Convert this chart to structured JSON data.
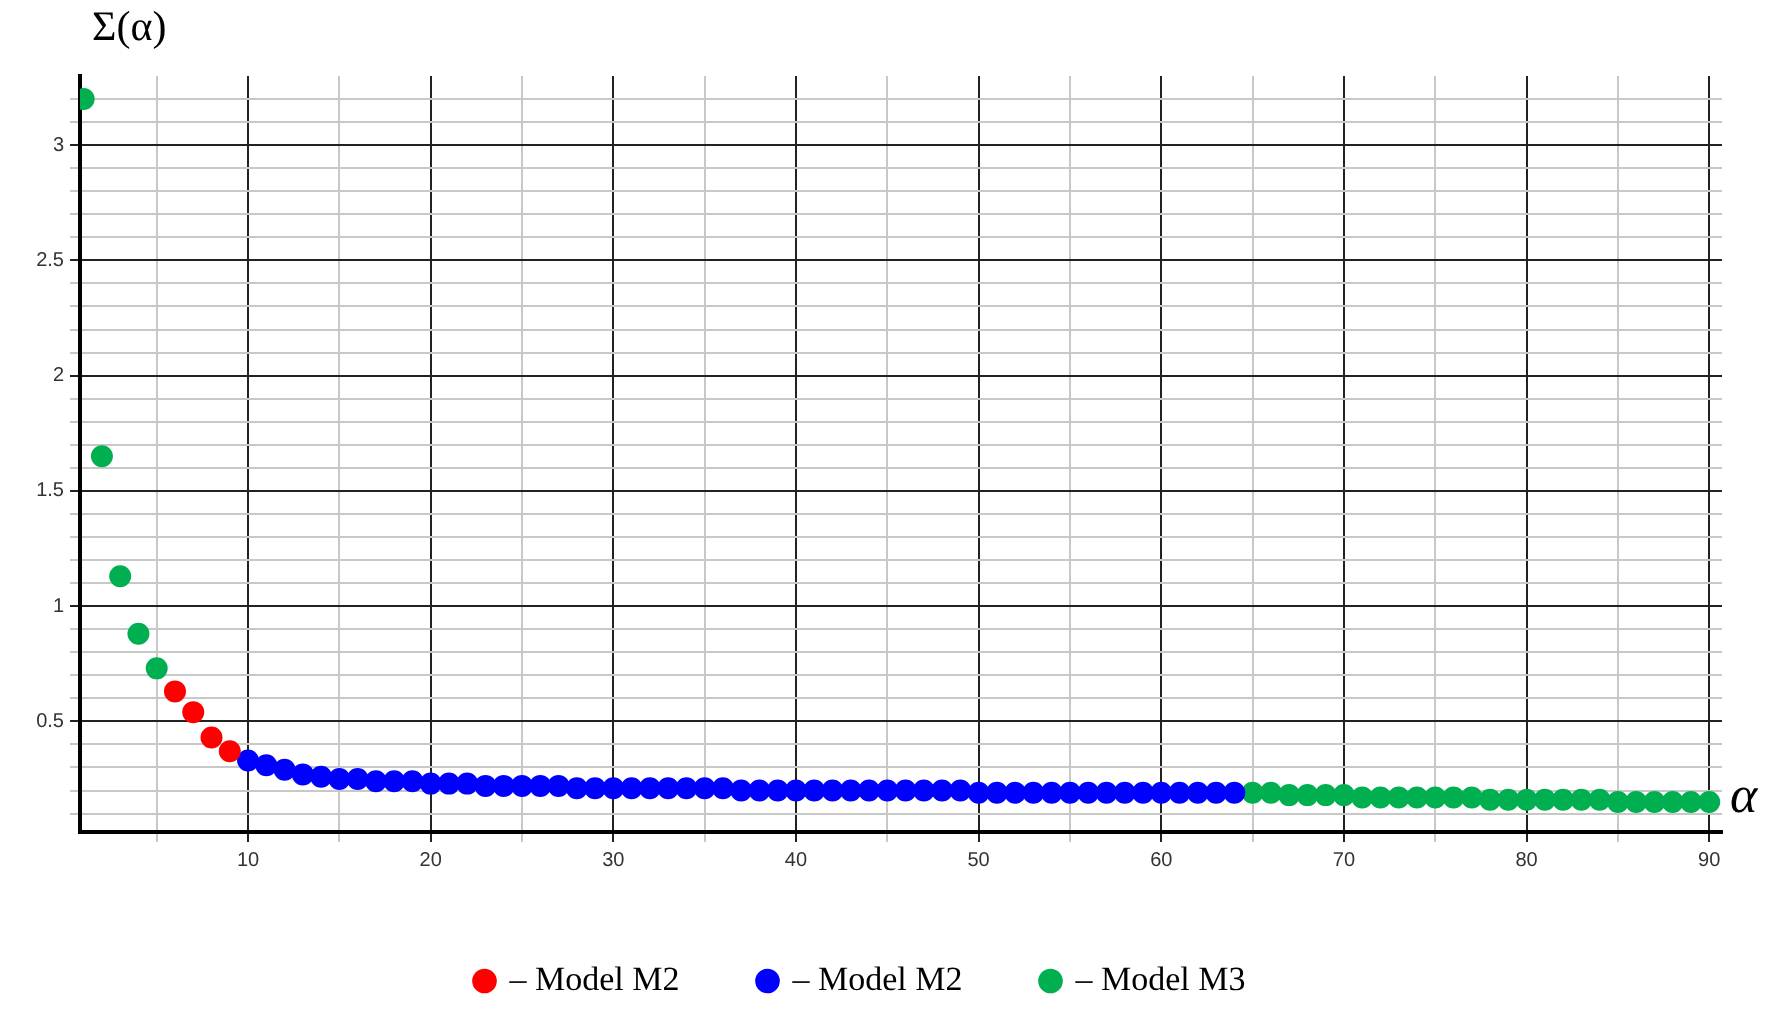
{
  "chart_data": {
    "type": "scatter",
    "xlabel": "α",
    "ylabel": "Σ(α)",
    "xlim": [
      0.8,
      90.7
    ],
    "ylim": [
      0.02,
      3.3
    ],
    "xticks": [
      {
        "value": 5,
        "label": null
      },
      10,
      {
        "value": 15,
        "label": null
      },
      20,
      {
        "value": 25,
        "label": null
      },
      30,
      {
        "value": 35,
        "label": null
      },
      40,
      {
        "value": 45,
        "label": null
      },
      50,
      {
        "value": 55,
        "label": null
      },
      60,
      {
        "value": 65,
        "label": null
      },
      70,
      {
        "value": 75,
        "label": null
      },
      80,
      {
        "value": 85,
        "label": null
      },
      90
    ],
    "yticks": [
      {
        "value": 0.1,
        "label": null
      },
      {
        "value": 0.2,
        "label": null
      },
      {
        "value": 0.3,
        "label": null
      },
      {
        "value": 0.4,
        "label": null
      },
      0.5,
      {
        "value": 0.6,
        "label": null
      },
      {
        "value": 0.7,
        "label": null
      },
      {
        "value": 0.8,
        "label": null
      },
      {
        "value": 0.9,
        "label": null
      },
      1,
      {
        "value": 1.1,
        "label": null
      },
      {
        "value": 1.2,
        "label": null
      },
      {
        "value": 1.3,
        "label": null
      },
      {
        "value": 1.4,
        "label": null
      },
      1.5,
      {
        "value": 1.6,
        "label": null
      },
      {
        "value": 1.7,
        "label": null
      },
      {
        "value": 1.8,
        "label": null
      },
      {
        "value": 1.9,
        "label": null
      },
      2,
      {
        "value": 2.1,
        "label": null
      },
      {
        "value": 2.2,
        "label": null
      },
      {
        "value": 2.3,
        "label": null
      },
      {
        "value": 2.4,
        "label": null
      },
      2.5,
      {
        "value": 2.6,
        "label": null
      },
      {
        "value": 2.7,
        "label": null
      },
      {
        "value": 2.8,
        "label": null
      },
      {
        "value": 2.9,
        "label": null
      },
      3,
      {
        "value": 3.1,
        "label": null
      },
      {
        "value": 3.2,
        "label": null
      }
    ],
    "grid": true,
    "legend": "bottom",
    "marker": "circle",
    "series": [
      {
        "name": "– Model M2",
        "color": "#ff0000",
        "x": [
          6,
          7,
          8,
          9
        ],
        "values": [
          0.63,
          0.54,
          0.43,
          0.37
        ]
      },
      {
        "name": "– Model M2",
        "color": "#0000ff",
        "x": [
          10,
          11,
          12,
          13,
          14,
          15,
          16,
          17,
          18,
          19,
          20,
          21,
          22,
          23,
          24,
          25,
          26,
          27,
          28,
          29,
          30,
          31,
          32,
          33,
          34,
          35,
          36,
          37,
          38,
          39,
          40,
          41,
          42,
          43,
          44,
          45,
          46,
          47,
          48,
          49,
          50,
          51,
          52,
          53,
          54,
          55,
          56,
          57,
          58,
          59,
          60,
          61,
          62,
          63,
          64
        ],
        "values": [
          0.33,
          0.31,
          0.29,
          0.27,
          0.26,
          0.25,
          0.25,
          0.24,
          0.24,
          0.24,
          0.23,
          0.23,
          0.23,
          0.22,
          0.22,
          0.22,
          0.22,
          0.22,
          0.21,
          0.21,
          0.21,
          0.21,
          0.21,
          0.21,
          0.21,
          0.21,
          0.21,
          0.2,
          0.2,
          0.2,
          0.2,
          0.2,
          0.2,
          0.2,
          0.2,
          0.2,
          0.2,
          0.2,
          0.2,
          0.2,
          0.19,
          0.19,
          0.19,
          0.19,
          0.19,
          0.19,
          0.19,
          0.19,
          0.19,
          0.19,
          0.19,
          0.19,
          0.19,
          0.19,
          0.19
        ]
      },
      {
        "name": "– Model M3",
        "color": "#00b050",
        "x": [
          1,
          2,
          3,
          4,
          5,
          65,
          66,
          67,
          68,
          69,
          70,
          71,
          72,
          73,
          74,
          75,
          76,
          77,
          78,
          79,
          80,
          81,
          82,
          83,
          84,
          85,
          86,
          87,
          88,
          89,
          90
        ],
        "values": [
          3.2,
          1.65,
          1.13,
          0.88,
          0.73,
          0.19,
          0.19,
          0.18,
          0.18,
          0.18,
          0.18,
          0.17,
          0.17,
          0.17,
          0.17,
          0.17,
          0.17,
          0.17,
          0.16,
          0.16,
          0.16,
          0.16,
          0.16,
          0.16,
          0.16,
          0.15,
          0.15,
          0.15,
          0.15,
          0.15,
          0.15
        ]
      }
    ]
  }
}
